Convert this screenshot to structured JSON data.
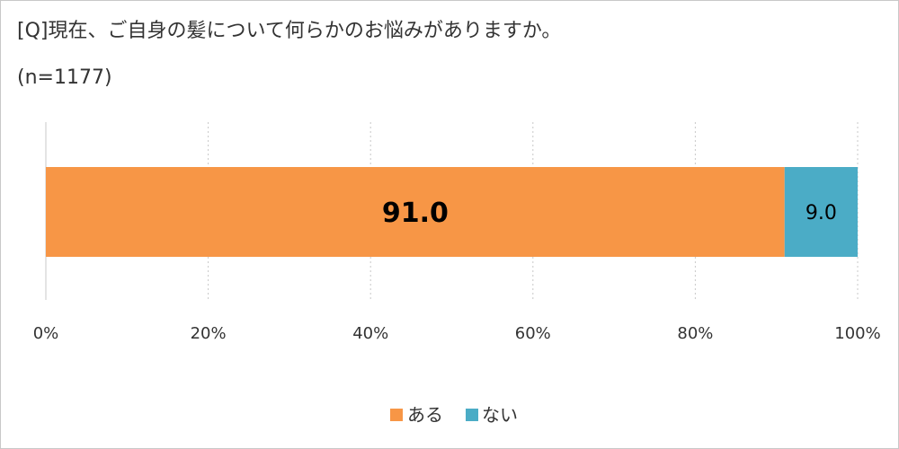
{
  "chart_data": {
    "type": "bar",
    "orientation": "horizontal",
    "stacked": true,
    "title": "[Q]現在、ご自身の髪について何らかのお悩みがありますか。",
    "subtitle": "(n=1177)",
    "categories": [
      ""
    ],
    "series": [
      {
        "name": "ある",
        "values": [
          91.0
        ],
        "color": "#F79646",
        "label": "91.0"
      },
      {
        "name": "ない",
        "values": [
          9.0
        ],
        "color": "#4BACC6",
        "label": "9.0"
      }
    ],
    "xlim": [
      0,
      100
    ],
    "xticks": [
      "0%",
      "20%",
      "40%",
      "60%",
      "80%",
      "100%"
    ],
    "grid": true,
    "legend_position": "bottom"
  }
}
